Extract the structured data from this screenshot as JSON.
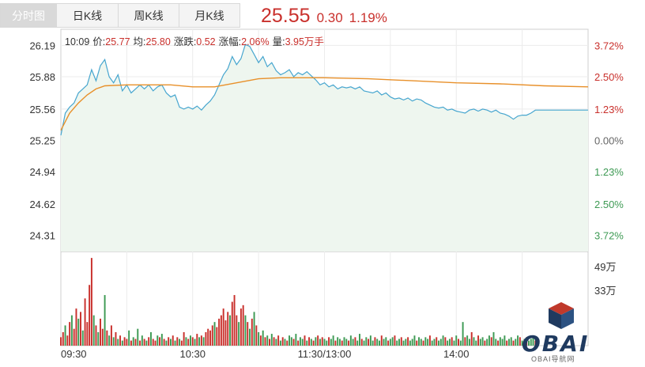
{
  "tabs": [
    {
      "label": "分时图",
      "active": true
    },
    {
      "label": "日K线",
      "active": false
    },
    {
      "label": "周K线",
      "active": false
    },
    {
      "label": "月K线",
      "active": false
    }
  ],
  "quote": {
    "price": "25.55",
    "change": "0.30",
    "change_pct": "1.19%"
  },
  "info": {
    "time": "10:09",
    "price_label": "价:",
    "price": "25.77",
    "avg_label": "均:",
    "avg": "25.80",
    "change_label": "涨跌:",
    "change": "0.52",
    "pct_label": "涨幅:",
    "pct": "2.06%",
    "volume_label": "量:",
    "volume": "3.95万手"
  },
  "colors": {
    "up": "#c9302c",
    "down": "#3e9a54",
    "price_line": "#47a6cf",
    "avg_line": "#e8902a",
    "area": "#eef6ef"
  },
  "logo": {
    "text": "OBAI",
    "sub": "OBAI导航网"
  },
  "chart_data": {
    "type": "line",
    "prev_close": 25.25,
    "y_ticks": [
      "26.19",
      "25.88",
      "25.56",
      "25.25",
      "24.94",
      "24.62",
      "24.31"
    ],
    "pct_ticks": [
      "3.72%",
      "2.50%",
      "1.23%",
      "0.00%",
      "1.23%",
      "2.50%",
      "3.72%"
    ],
    "ylim": [
      24.15,
      26.35
    ],
    "x_ticks": [
      "09:30",
      "10:30",
      "11:30/13:00",
      "14:00"
    ],
    "x_tick_minutes": [
      0,
      60,
      120,
      180
    ],
    "total_minutes": 240,
    "price": [
      [
        0,
        25.3
      ],
      [
        2,
        25.52
      ],
      [
        4,
        25.58
      ],
      [
        6,
        25.62
      ],
      [
        8,
        25.72
      ],
      [
        10,
        25.76
      ],
      [
        12,
        25.8
      ],
      [
        14,
        25.95
      ],
      [
        16,
        25.84
      ],
      [
        18,
        25.99
      ],
      [
        20,
        26.05
      ],
      [
        22,
        25.88
      ],
      [
        24,
        25.82
      ],
      [
        26,
        25.9
      ],
      [
        28,
        25.74
      ],
      [
        30,
        25.8
      ],
      [
        32,
        25.72
      ],
      [
        34,
        25.76
      ],
      [
        36,
        25.8
      ],
      [
        38,
        25.76
      ],
      [
        40,
        25.8
      ],
      [
        42,
        25.74
      ],
      [
        44,
        25.78
      ],
      [
        46,
        25.8
      ],
      [
        48,
        25.72
      ],
      [
        50,
        25.68
      ],
      [
        52,
        25.7
      ],
      [
        54,
        25.58
      ],
      [
        56,
        25.56
      ],
      [
        58,
        25.58
      ],
      [
        60,
        25.56
      ],
      [
        62,
        25.59
      ],
      [
        64,
        25.55
      ],
      [
        66,
        25.6
      ],
      [
        68,
        25.64
      ],
      [
        70,
        25.7
      ],
      [
        72,
        25.8
      ],
      [
        74,
        25.9
      ],
      [
        76,
        25.96
      ],
      [
        78,
        26.08
      ],
      [
        80,
        26.0
      ],
      [
        82,
        26.06
      ],
      [
        84,
        26.2
      ],
      [
        86,
        26.18
      ],
      [
        88,
        26.1
      ],
      [
        90,
        26.02
      ],
      [
        92,
        26.08
      ],
      [
        94,
        25.98
      ],
      [
        96,
        26.02
      ],
      [
        98,
        25.94
      ],
      [
        100,
        25.9
      ],
      [
        102,
        25.92
      ],
      [
        104,
        25.95
      ],
      [
        106,
        25.88
      ],
      [
        108,
        25.92
      ],
      [
        110,
        25.9
      ],
      [
        112,
        25.93
      ],
      [
        114,
        25.89
      ],
      [
        116,
        25.85
      ],
      [
        118,
        25.8
      ],
      [
        120,
        25.82
      ],
      [
        122,
        25.78
      ],
      [
        124,
        25.8
      ],
      [
        126,
        25.76
      ],
      [
        128,
        25.78
      ],
      [
        130,
        25.77
      ],
      [
        132,
        25.78
      ],
      [
        134,
        25.76
      ],
      [
        136,
        25.78
      ],
      [
        138,
        25.74
      ],
      [
        140,
        25.73
      ],
      [
        142,
        25.72
      ],
      [
        144,
        25.74
      ],
      [
        146,
        25.7
      ],
      [
        148,
        25.72
      ],
      [
        150,
        25.68
      ],
      [
        152,
        25.66
      ],
      [
        154,
        25.67
      ],
      [
        156,
        25.65
      ],
      [
        158,
        25.67
      ],
      [
        160,
        25.64
      ],
      [
        162,
        25.66
      ],
      [
        164,
        25.65
      ],
      [
        166,
        25.62
      ],
      [
        168,
        25.6
      ],
      [
        170,
        25.58
      ],
      [
        172,
        25.57
      ],
      [
        174,
        25.58
      ],
      [
        176,
        25.55
      ],
      [
        178,
        25.56
      ],
      [
        180,
        25.54
      ],
      [
        182,
        25.53
      ],
      [
        184,
        25.52
      ],
      [
        186,
        25.55
      ],
      [
        188,
        25.56
      ],
      [
        190,
        25.54
      ],
      [
        192,
        25.56
      ],
      [
        194,
        25.55
      ],
      [
        196,
        25.53
      ],
      [
        198,
        25.55
      ],
      [
        200,
        25.52
      ],
      [
        202,
        25.51
      ],
      [
        204,
        25.49
      ],
      [
        206,
        25.46
      ],
      [
        208,
        25.49
      ],
      [
        210,
        25.5
      ],
      [
        212,
        25.5
      ],
      [
        214,
        25.52
      ],
      [
        216,
        25.55
      ],
      [
        240,
        25.55
      ]
    ],
    "avg": [
      [
        0,
        25.35
      ],
      [
        4,
        25.52
      ],
      [
        8,
        25.62
      ],
      [
        12,
        25.7
      ],
      [
        16,
        25.76
      ],
      [
        20,
        25.79
      ],
      [
        30,
        25.8
      ],
      [
        50,
        25.8
      ],
      [
        60,
        25.78
      ],
      [
        70,
        25.78
      ],
      [
        80,
        25.82
      ],
      [
        90,
        25.86
      ],
      [
        100,
        25.87
      ],
      [
        120,
        25.87
      ],
      [
        140,
        25.86
      ],
      [
        160,
        25.84
      ],
      [
        180,
        25.82
      ],
      [
        200,
        25.81
      ],
      [
        220,
        25.79
      ],
      [
        240,
        25.78
      ]
    ],
    "volume_ticks": [
      "49万",
      "33万"
    ],
    "volume_max": 53,
    "volume": [
      [
        0,
        5,
        1
      ],
      [
        1,
        8,
        1
      ],
      [
        2,
        12,
        0
      ],
      [
        3,
        6,
        1
      ],
      [
        4,
        14,
        1
      ],
      [
        5,
        18,
        0
      ],
      [
        6,
        10,
        1
      ],
      [
        7,
        22,
        1
      ],
      [
        8,
        16,
        0
      ],
      [
        9,
        20,
        1
      ],
      [
        10,
        9,
        0
      ],
      [
        11,
        28,
        1
      ],
      [
        12,
        14,
        1
      ],
      [
        13,
        36,
        1
      ],
      [
        14,
        52,
        1
      ],
      [
        15,
        18,
        0
      ],
      [
        16,
        12,
        1
      ],
      [
        17,
        8,
        0
      ],
      [
        18,
        16,
        1
      ],
      [
        19,
        10,
        1
      ],
      [
        20,
        30,
        0
      ],
      [
        21,
        9,
        1
      ],
      [
        22,
        6,
        0
      ],
      [
        23,
        12,
        1
      ],
      [
        24,
        5,
        0
      ],
      [
        25,
        8,
        1
      ],
      [
        26,
        4,
        0
      ],
      [
        27,
        6,
        1
      ],
      [
        28,
        3,
        0
      ],
      [
        29,
        5,
        1
      ],
      [
        30,
        4,
        1
      ],
      [
        31,
        9,
        0
      ],
      [
        32,
        3,
        1
      ],
      [
        33,
        5,
        0
      ],
      [
        34,
        4,
        1
      ],
      [
        35,
        10,
        0
      ],
      [
        36,
        3,
        1
      ],
      [
        37,
        6,
        0
      ],
      [
        38,
        4,
        1
      ],
      [
        39,
        3,
        0
      ],
      [
        40,
        5,
        1
      ],
      [
        41,
        8,
        0
      ],
      [
        42,
        4,
        1
      ],
      [
        43,
        3,
        1
      ],
      [
        44,
        6,
        0
      ],
      [
        45,
        5,
        1
      ],
      [
        46,
        7,
        0
      ],
      [
        47,
        4,
        1
      ],
      [
        48,
        3,
        0
      ],
      [
        49,
        5,
        1
      ],
      [
        50,
        4,
        0
      ],
      [
        51,
        6,
        1
      ],
      [
        52,
        3,
        0
      ],
      [
        53,
        5,
        1
      ],
      [
        54,
        4,
        0
      ],
      [
        55,
        3,
        1
      ],
      [
        56,
        8,
        1
      ],
      [
        57,
        5,
        0
      ],
      [
        58,
        4,
        1
      ],
      [
        59,
        6,
        0
      ],
      [
        60,
        5,
        1
      ],
      [
        61,
        4,
        0
      ],
      [
        62,
        7,
        1
      ],
      [
        63,
        5,
        0
      ],
      [
        64,
        6,
        1
      ],
      [
        65,
        5,
        0
      ],
      [
        66,
        8,
        1
      ],
      [
        67,
        10,
        1
      ],
      [
        68,
        9,
        1
      ],
      [
        69,
        12,
        1
      ],
      [
        70,
        14,
        0
      ],
      [
        71,
        11,
        1
      ],
      [
        72,
        16,
        1
      ],
      [
        73,
        18,
        1
      ],
      [
        74,
        22,
        1
      ],
      [
        75,
        15,
        1
      ],
      [
        76,
        20,
        1
      ],
      [
        77,
        18,
        0
      ],
      [
        78,
        26,
        1
      ],
      [
        79,
        30,
        1
      ],
      [
        80,
        18,
        1
      ],
      [
        81,
        14,
        0
      ],
      [
        82,
        22,
        1
      ],
      [
        83,
        24,
        1
      ],
      [
        84,
        18,
        0
      ],
      [
        85,
        14,
        1
      ],
      [
        86,
        10,
        0
      ],
      [
        87,
        16,
        1
      ],
      [
        88,
        20,
        0
      ],
      [
        89,
        12,
        1
      ],
      [
        90,
        8,
        0
      ],
      [
        91,
        6,
        1
      ],
      [
        92,
        9,
        0
      ],
      [
        93,
        5,
        1
      ],
      [
        94,
        6,
        0
      ],
      [
        95,
        4,
        1
      ],
      [
        96,
        7,
        0
      ],
      [
        97,
        5,
        1
      ],
      [
        98,
        4,
        0
      ],
      [
        99,
        6,
        1
      ],
      [
        100,
        3,
        0
      ],
      [
        101,
        5,
        1
      ],
      [
        102,
        4,
        0
      ],
      [
        103,
        3,
        1
      ],
      [
        104,
        6,
        0
      ],
      [
        105,
        5,
        0
      ],
      [
        106,
        4,
        1
      ],
      [
        107,
        7,
        0
      ],
      [
        108,
        3,
        1
      ],
      [
        109,
        5,
        0
      ],
      [
        110,
        4,
        0
      ],
      [
        111,
        6,
        1
      ],
      [
        112,
        3,
        0
      ],
      [
        113,
        5,
        1
      ],
      [
        114,
        4,
        0
      ],
      [
        115,
        3,
        1
      ],
      [
        116,
        5,
        0
      ],
      [
        117,
        6,
        1
      ],
      [
        118,
        4,
        0
      ],
      [
        119,
        5,
        1
      ],
      [
        120,
        4,
        0
      ],
      [
        121,
        3,
        0
      ],
      [
        122,
        5,
        1
      ],
      [
        123,
        4,
        0
      ],
      [
        124,
        6,
        0
      ],
      [
        125,
        3,
        1
      ],
      [
        126,
        5,
        0
      ],
      [
        127,
        4,
        0
      ],
      [
        128,
        3,
        1
      ],
      [
        129,
        5,
        0
      ],
      [
        130,
        4,
        0
      ],
      [
        131,
        3,
        1
      ],
      [
        132,
        6,
        0
      ],
      [
        133,
        4,
        0
      ],
      [
        134,
        5,
        1
      ],
      [
        135,
        3,
        0
      ],
      [
        136,
        7,
        0
      ],
      [
        137,
        4,
        1
      ],
      [
        138,
        3,
        0
      ],
      [
        139,
        5,
        0
      ],
      [
        140,
        4,
        1
      ],
      [
        141,
        6,
        0
      ],
      [
        142,
        3,
        0
      ],
      [
        143,
        5,
        1
      ],
      [
        144,
        4,
        0
      ],
      [
        145,
        3,
        0
      ],
      [
        146,
        6,
        1
      ],
      [
        147,
        4,
        0
      ],
      [
        148,
        5,
        0
      ],
      [
        149,
        3,
        1
      ],
      [
        150,
        4,
        0
      ],
      [
        151,
        5,
        0
      ],
      [
        152,
        6,
        1
      ],
      [
        153,
        3,
        0
      ],
      [
        154,
        4,
        0
      ],
      [
        155,
        5,
        1
      ],
      [
        156,
        3,
        0
      ],
      [
        157,
        4,
        0
      ],
      [
        158,
        5,
        1
      ],
      [
        159,
        3,
        0
      ],
      [
        160,
        4,
        0
      ],
      [
        161,
        6,
        0
      ],
      [
        162,
        3,
        1
      ],
      [
        163,
        5,
        0
      ],
      [
        164,
        4,
        0
      ],
      [
        165,
        3,
        1
      ],
      [
        166,
        5,
        0
      ],
      [
        167,
        4,
        0
      ],
      [
        168,
        6,
        1
      ],
      [
        169,
        3,
        0
      ],
      [
        170,
        4,
        0
      ],
      [
        171,
        5,
        1
      ],
      [
        172,
        3,
        0
      ],
      [
        173,
        4,
        0
      ],
      [
        174,
        6,
        0
      ],
      [
        175,
        5,
        1
      ],
      [
        176,
        3,
        0
      ],
      [
        177,
        4,
        0
      ],
      [
        178,
        5,
        1
      ],
      [
        179,
        3,
        0
      ],
      [
        180,
        6,
        0
      ],
      [
        181,
        4,
        1
      ],
      [
        182,
        3,
        0
      ],
      [
        183,
        14,
        0
      ],
      [
        184,
        5,
        1
      ],
      [
        185,
        6,
        0
      ],
      [
        186,
        4,
        0
      ],
      [
        187,
        8,
        1
      ],
      [
        188,
        5,
        0
      ],
      [
        189,
        3,
        0
      ],
      [
        190,
        6,
        1
      ],
      [
        191,
        4,
        0
      ],
      [
        192,
        5,
        0
      ],
      [
        193,
        3,
        1
      ],
      [
        194,
        4,
        0
      ],
      [
        195,
        6,
        0
      ],
      [
        196,
        5,
        1
      ],
      [
        197,
        8,
        0
      ],
      [
        198,
        4,
        0
      ],
      [
        199,
        3,
        1
      ],
      [
        200,
        5,
        0
      ],
      [
        201,
        4,
        0
      ],
      [
        202,
        6,
        0
      ],
      [
        203,
        3,
        1
      ],
      [
        204,
        4,
        0
      ],
      [
        205,
        5,
        0
      ],
      [
        206,
        3,
        1
      ],
      [
        207,
        4,
        0
      ],
      [
        208,
        6,
        0
      ],
      [
        209,
        5,
        1
      ],
      [
        210,
        3,
        0
      ],
      [
        211,
        4,
        0
      ],
      [
        212,
        5,
        1
      ],
      [
        213,
        3,
        0
      ],
      [
        214,
        4,
        0
      ],
      [
        215,
        6,
        0
      ],
      [
        216,
        3,
        1
      ]
    ]
  }
}
